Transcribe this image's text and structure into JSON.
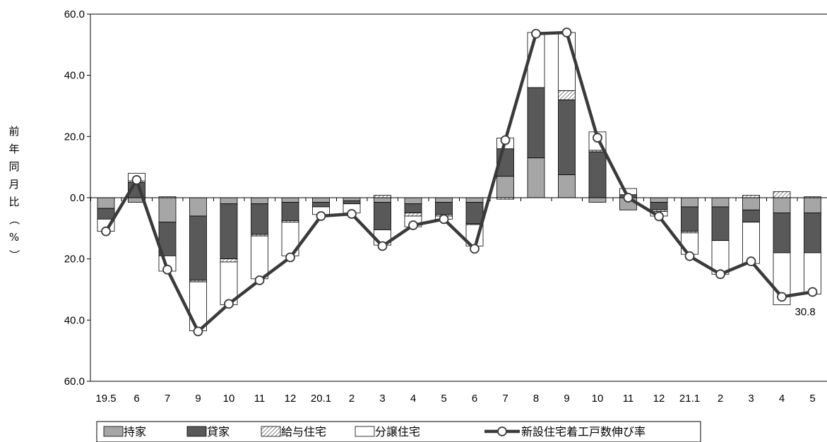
{
  "chart_data": {
    "type": "bar",
    "subtype": "stacked bar with line",
    "ylabel": "前年同月比（%）",
    "ylim": [
      -60,
      60
    ],
    "yticks": [
      {
        "value": 60,
        "label": "60.0"
      },
      {
        "value": 40,
        "label": "40.0"
      },
      {
        "value": 20,
        "label": "20.0"
      },
      {
        "value": 0,
        "label": "0.0"
      },
      {
        "value": -20,
        "label": "20.0"
      },
      {
        "value": -40,
        "label": "40.0"
      },
      {
        "value": -60,
        "label": "60.0"
      }
    ],
    "categories": [
      "19.5",
      "6",
      "7",
      "9",
      "10",
      "11",
      "12",
      "20.1",
      "2",
      "3",
      "4",
      "5",
      "6",
      "7",
      "8",
      "9",
      "10",
      "11",
      "12",
      "21.1",
      "2",
      "3",
      "4",
      "5"
    ],
    "series": [
      {
        "name": "持家",
        "color": "#a6a6a6",
        "values": [
          -3.5,
          -1.5,
          -8,
          -6,
          -2,
          -2,
          -1.5,
          -1.5,
          -1,
          -1.5,
          -2,
          -1.5,
          -1.5,
          7,
          13,
          7.5,
          -1.5,
          -4,
          -1.5,
          -3,
          -3,
          -4,
          -5,
          -5
        ]
      },
      {
        "name": "貸家",
        "color": "#595959",
        "values": [
          -3.5,
          5,
          -11,
          -21,
          -18,
          -10,
          -6,
          -1.5,
          -1,
          -9,
          -3,
          -4,
          -7,
          9,
          23,
          24.5,
          15,
          1,
          -2.5,
          -8,
          -11,
          -4,
          -13,
          -13
        ]
      },
      {
        "name": "給与住宅",
        "color": "#d9d9d9",
        "values": [
          0,
          0.5,
          0.3,
          -0.5,
          -1,
          -0.5,
          -0.5,
          0,
          0,
          0.8,
          -1,
          -0.5,
          -0.3,
          -0.5,
          0,
          3,
          0.5,
          0,
          -0.5,
          -0.5,
          0,
          0.8,
          2,
          0.3
        ]
      },
      {
        "name": "分譲住宅",
        "color": "#ffffff",
        "values": [
          -4,
          2.5,
          -5,
          -16,
          -14,
          -14,
          -11,
          -2.5,
          -3,
          -5,
          -3.5,
          -1,
          -7,
          3.5,
          18,
          19,
          6,
          2,
          -1.5,
          -7,
          -11,
          -13.5,
          -17,
          -13.5
        ]
      }
    ],
    "line": {
      "name": "新設住宅着工戸数伸び率",
      "values": [
        -11,
        5.8,
        -23.5,
        -43.7,
        -34.7,
        -27,
        -19.5,
        -6,
        -5.3,
        -15.8,
        -9,
        -7,
        -16.7,
        18.8,
        53.6,
        54,
        19.6,
        0,
        -6.1,
        -19.1,
        -25,
        -20.8,
        -32.4,
        -30.8
      ]
    },
    "annotations": [
      {
        "text": "30.8"
      }
    ],
    "legend": {
      "position": "bottom"
    },
    "grid": false
  }
}
